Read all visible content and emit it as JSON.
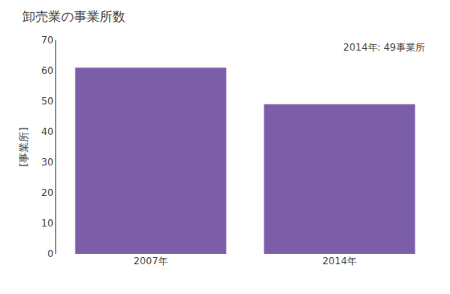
{
  "chart_data": {
    "type": "bar",
    "title": "卸売業の事業所数",
    "ylabel": "[事業所]",
    "categories": [
      "2007年",
      "2014年"
    ],
    "values": [
      61,
      49
    ],
    "color": "#7B5EA7",
    "ylim": [
      0,
      70
    ],
    "yticks": [
      0,
      10,
      20,
      30,
      40,
      50,
      60,
      70
    ],
    "annotation": "2014年: 49事業所",
    "grid": false
  }
}
